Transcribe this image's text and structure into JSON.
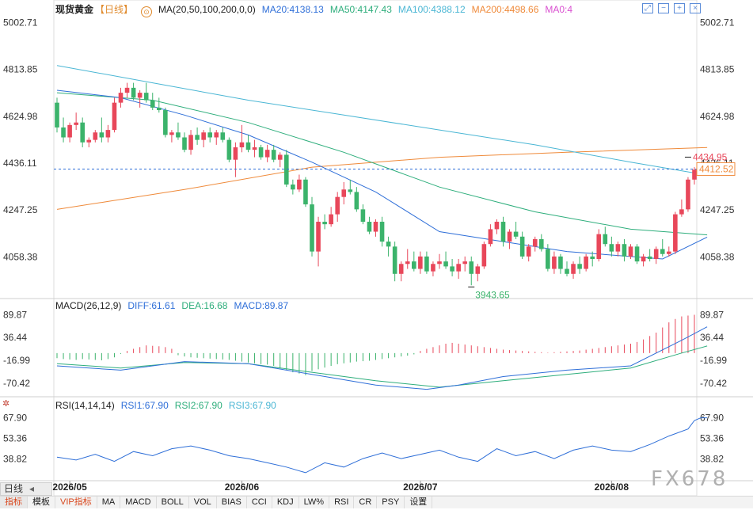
{
  "header": {
    "symbol": "现货黄金",
    "period": "【日线】",
    "ma_label": "MA(20,50,100,200,0,0)",
    "ma20": "MA20:4138.13",
    "ma50": "MA50:4147.43",
    "ma100": "MA100:4388.12",
    "ma200": "MA200:4498.66",
    "ma0": "MA0:4"
  },
  "macd_header": {
    "label": "MACD(26,12,9)",
    "diff": "DIFF:61.61",
    "dea": "DEA:16.68",
    "macd": "MACD:89.87"
  },
  "rsi_header": {
    "label": "RSI(14,14,14)",
    "rsi1": "RSI1:67.90",
    "rsi2": "RSI2:67.90",
    "rsi3": "RSI3:67.90"
  },
  "period_selector": "日线",
  "watermark": "FX678",
  "bottom_tabs": [
    "指标",
    "模板",
    "VIP指标",
    "MA",
    "MACD",
    "BOLL",
    "VOL",
    "BIAS",
    "CCI",
    "KDJ",
    "LW%",
    "RSI",
    "CR",
    "PSY",
    "设置"
  ],
  "colors": {
    "up": "#e8475a",
    "down": "#3bb36b",
    "ma20": "#2f6fd8",
    "ma50": "#2eae7c",
    "ma100": "#4ab6d4",
    "ma200": "#ef8a3a",
    "diff": "#2f6fd8",
    "dea": "#2eae7c",
    "rsi": "#2f6fd8"
  },
  "chart_data": [
    {
      "type": "candlestick",
      "x_labels": [
        "2026/05",
        "2026/06",
        "2026/07",
        "2026/08"
      ],
      "x_label_index": [
        2,
        29,
        57,
        87
      ],
      "y_ticks": [
        5002.71,
        4813.85,
        4624.98,
        4436.11,
        4247.25,
        4058.38
      ],
      "ylim": [
        3900,
        5030
      ],
      "last_price": 4412.52,
      "annotations": [
        {
          "text": "4434.95",
          "value": 4434.95,
          "index": 99
        },
        {
          "text": "3943.65",
          "value": 3943.65,
          "index": 65
        }
      ],
      "candles": [
        [
          4680,
          4700,
          4560,
          4580
        ],
        [
          4580,
          4620,
          4520,
          4540
        ],
        [
          4540,
          4600,
          4520,
          4590
        ],
        [
          4590,
          4640,
          4570,
          4600
        ],
        [
          4600,
          4620,
          4500,
          4520
        ],
        [
          4520,
          4540,
          4500,
          4530
        ],
        [
          4530,
          4570,
          4520,
          4560
        ],
        [
          4560,
          4620,
          4520,
          4540
        ],
        [
          4540,
          4590,
          4520,
          4570
        ],
        [
          4570,
          4700,
          4560,
          4680
        ],
        [
          4680,
          4740,
          4660,
          4720
        ],
        [
          4720,
          4760,
          4700,
          4740
        ],
        [
          4740,
          4760,
          4690,
          4700
        ],
        [
          4700,
          4730,
          4660,
          4720
        ],
        [
          4720,
          4760,
          4680,
          4690
        ],
        [
          4690,
          4720,
          4650,
          4660
        ],
        [
          4660,
          4700,
          4640,
          4650
        ],
        [
          4650,
          4660,
          4540,
          4550
        ],
        [
          4550,
          4570,
          4520,
          4560
        ],
        [
          4560,
          4600,
          4530,
          4540
        ],
        [
          4540,
          4560,
          4480,
          4490
        ],
        [
          4490,
          4570,
          4470,
          4550
        ],
        [
          4550,
          4580,
          4510,
          4530
        ],
        [
          4530,
          4570,
          4500,
          4560
        ],
        [
          4560,
          4580,
          4520,
          4540
        ],
        [
          4540,
          4570,
          4510,
          4560
        ],
        [
          4560,
          4580,
          4520,
          4530
        ],
        [
          4530,
          4540,
          4440,
          4450
        ],
        [
          4450,
          4520,
          4380,
          4500
        ],
        [
          4500,
          4590,
          4480,
          4520
        ],
        [
          4520,
          4550,
          4480,
          4490
        ],
        [
          4490,
          4530,
          4460,
          4500
        ],
        [
          4500,
          4510,
          4450,
          4460
        ],
        [
          4460,
          4510,
          4440,
          4490
        ],
        [
          4490,
          4510,
          4440,
          4450
        ],
        [
          4450,
          4480,
          4420,
          4470
        ],
        [
          4470,
          4490,
          4340,
          4350
        ],
        [
          4350,
          4370,
          4310,
          4330
        ],
        [
          4330,
          4390,
          4320,
          4370
        ],
        [
          4370,
          4380,
          4260,
          4270
        ],
        [
          4270,
          4300,
          4060,
          4080
        ],
        [
          4080,
          4220,
          4020,
          4200
        ],
        [
          4200,
          4230,
          4170,
          4190
        ],
        [
          4190,
          4260,
          4180,
          4230
        ],
        [
          4230,
          4320,
          4200,
          4300
        ],
        [
          4300,
          4360,
          4270,
          4330
        ],
        [
          4330,
          4370,
          4310,
          4320
        ],
        [
          4320,
          4340,
          4240,
          4250
        ],
        [
          4250,
          4270,
          4190,
          4200
        ],
        [
          4200,
          4220,
          4150,
          4160
        ],
        [
          4160,
          4210,
          4140,
          4200
        ],
        [
          4200,
          4220,
          4100,
          4120
        ],
        [
          4120,
          4140,
          4060,
          4100
        ],
        [
          4100,
          4120,
          3960,
          3990
        ],
        [
          3990,
          4040,
          3960,
          4030
        ],
        [
          4030,
          4090,
          4010,
          4040
        ],
        [
          4040,
          4080,
          4000,
          4010
        ],
        [
          4010,
          4080,
          3990,
          4060
        ],
        [
          4060,
          4080,
          3990,
          4000
        ],
        [
          4000,
          4040,
          3980,
          4030
        ],
        [
          4030,
          4070,
          4010,
          4040
        ],
        [
          4040,
          4080,
          4010,
          4020
        ],
        [
          4020,
          4050,
          3980,
          4000
        ],
        [
          4000,
          4050,
          3970,
          4030
        ],
        [
          4030,
          4060,
          4000,
          4040
        ],
        [
          4040,
          4060,
          3944,
          3990
        ],
        [
          3990,
          4030,
          3960,
          4020
        ],
        [
          4020,
          4120,
          4010,
          4110
        ],
        [
          4110,
          4190,
          4100,
          4170
        ],
        [
          4170,
          4210,
          4150,
          4200
        ],
        [
          4200,
          4220,
          4100,
          4120
        ],
        [
          4120,
          4170,
          4090,
          4160
        ],
        [
          4160,
          4200,
          4130,
          4140
        ],
        [
          4140,
          4160,
          4050,
          4060
        ],
        [
          4060,
          4110,
          4040,
          4100
        ],
        [
          4100,
          4140,
          4080,
          4130
        ],
        [
          4130,
          4150,
          4080,
          4090
        ],
        [
          4090,
          4110,
          4000,
          4010
        ],
        [
          4010,
          4080,
          3990,
          4060
        ],
        [
          4060,
          4070,
          3990,
          4010
        ],
        [
          4010,
          4040,
          3980,
          3990
        ],
        [
          3990,
          4040,
          3970,
          4030
        ],
        [
          4030,
          4060,
          3990,
          4010
        ],
        [
          4010,
          4070,
          4000,
          4060
        ],
        [
          4060,
          4080,
          4020,
          4050
        ],
        [
          4050,
          4170,
          4040,
          4150
        ],
        [
          4150,
          4180,
          4100,
          4110
        ],
        [
          4110,
          4140,
          4060,
          4080
        ],
        [
          4080,
          4120,
          4060,
          4110
        ],
        [
          4110,
          4130,
          4040,
          4060
        ],
        [
          4060,
          4110,
          4050,
          4100
        ],
        [
          4100,
          4110,
          4030,
          4040
        ],
        [
          4040,
          4070,
          4020,
          4060
        ],
        [
          4060,
          4090,
          4040,
          4050
        ],
        [
          4050,
          4100,
          4030,
          4090
        ],
        [
          4090,
          4130,
          4060,
          4070
        ],
        [
          4070,
          4100,
          4060,
          4080
        ],
        [
          4080,
          4240,
          4070,
          4230
        ],
        [
          4230,
          4290,
          4220,
          4250
        ],
        [
          4250,
          4380,
          4240,
          4370
        ],
        [
          4370,
          4420,
          4350,
          4410
        ],
        [
          4410,
          4435,
          4390,
          4420
        ],
        [
          4420,
          4430,
          4400,
          4412
        ]
      ],
      "ma": {
        "ma20": [
          [
            0,
            4730
          ],
          [
            10,
            4700
          ],
          [
            20,
            4630
          ],
          [
            30,
            4550
          ],
          [
            40,
            4440
          ],
          [
            50,
            4320
          ],
          [
            60,
            4160
          ],
          [
            70,
            4120
          ],
          [
            80,
            4080
          ],
          [
            90,
            4060
          ],
          [
            95,
            4050
          ],
          [
            102,
            4138
          ]
        ],
        "ma50": [
          [
            0,
            4720
          ],
          [
            15,
            4690
          ],
          [
            30,
            4600
          ],
          [
            45,
            4480
          ],
          [
            60,
            4340
          ],
          [
            75,
            4240
          ],
          [
            90,
            4170
          ],
          [
            102,
            4147
          ]
        ],
        "ma100": [
          [
            0,
            4830
          ],
          [
            15,
            4760
          ],
          [
            30,
            4690
          ],
          [
            45,
            4630
          ],
          [
            60,
            4570
          ],
          [
            75,
            4510
          ],
          [
            90,
            4440
          ],
          [
            102,
            4388
          ]
        ],
        "ma200": [
          [
            0,
            4250
          ],
          [
            20,
            4330
          ],
          [
            40,
            4420
          ],
          [
            60,
            4460
          ],
          [
            80,
            4480
          ],
          [
            102,
            4499
          ]
        ]
      }
    },
    {
      "type": "bar+line",
      "name": "MACD",
      "y_ticks": [
        89.87,
        36.44,
        -16.99,
        -70.42
      ],
      "ylim": [
        -95,
        100
      ],
      "histogram": [
        -12,
        -14,
        -15,
        -16,
        -14,
        -15,
        -16,
        -17,
        -14,
        -10,
        -2,
        5,
        10,
        14,
        18,
        17,
        16,
        14,
        10,
        -5,
        -8,
        -10,
        -11,
        -12,
        -13,
        -14,
        -15,
        -16,
        -18,
        -20,
        -22,
        -24,
        -26,
        -27,
        -30,
        -35,
        -40,
        -45,
        -48,
        -52,
        -42,
        -38,
        -34,
        -30,
        -26,
        -24,
        -22,
        -20,
        -19,
        -18,
        -16,
        -14,
        -12,
        -10,
        -8,
        -6,
        -3,
        5,
        10,
        14,
        18,
        22,
        24,
        22,
        20,
        18,
        16,
        14,
        12,
        10,
        8,
        7,
        6,
        5,
        4,
        3,
        2,
        1,
        2,
        3,
        4,
        5,
        6,
        8,
        10,
        12,
        14,
        16,
        18,
        20,
        22,
        26,
        32,
        40,
        48,
        60,
        72,
        80,
        86,
        88,
        89.87
      ],
      "diff": [
        [
          0,
          -30
        ],
        [
          10,
          -40
        ],
        [
          20,
          -20
        ],
        [
          30,
          -25
        ],
        [
          40,
          -50
        ],
        [
          50,
          -75
        ],
        [
          58,
          -85
        ],
        [
          63,
          -75
        ],
        [
          70,
          -55
        ],
        [
          80,
          -40
        ],
        [
          90,
          -30
        ],
        [
          98,
          30
        ],
        [
          102,
          61.61
        ]
      ],
      "dea": [
        [
          0,
          -25
        ],
        [
          10,
          -35
        ],
        [
          20,
          -22
        ],
        [
          30,
          -25
        ],
        [
          40,
          -45
        ],
        [
          50,
          -65
        ],
        [
          60,
          -80
        ],
        [
          70,
          -65
        ],
        [
          80,
          -50
        ],
        [
          90,
          -35
        ],
        [
          98,
          0
        ],
        [
          102,
          16.68
        ]
      ]
    },
    {
      "type": "line",
      "name": "RSI",
      "y_ticks": [
        67.9,
        53.36,
        38.82
      ],
      "ylim": [
        25,
        75
      ],
      "series": [
        [
          0,
          40
        ],
        [
          3,
          38
        ],
        [
          6,
          42
        ],
        [
          9,
          37
        ],
        [
          12,
          44
        ],
        [
          15,
          41
        ],
        [
          18,
          46
        ],
        [
          21,
          48
        ],
        [
          24,
          45
        ],
        [
          27,
          41
        ],
        [
          30,
          39
        ],
        [
          33,
          36
        ],
        [
          36,
          33
        ],
        [
          39,
          29
        ],
        [
          42,
          36
        ],
        [
          45,
          33
        ],
        [
          48,
          39
        ],
        [
          51,
          43
        ],
        [
          54,
          39
        ],
        [
          57,
          42
        ],
        [
          60,
          45
        ],
        [
          63,
          40
        ],
        [
          66,
          37
        ],
        [
          69,
          46
        ],
        [
          72,
          41
        ],
        [
          75,
          44
        ],
        [
          78,
          39
        ],
        [
          81,
          45
        ],
        [
          84,
          48
        ],
        [
          87,
          45
        ],
        [
          90,
          44
        ],
        [
          93,
          49
        ],
        [
          96,
          55
        ],
        [
          99,
          60
        ],
        [
          100,
          66
        ],
        [
          101,
          67.9
        ],
        [
          102,
          67.9
        ]
      ]
    }
  ]
}
